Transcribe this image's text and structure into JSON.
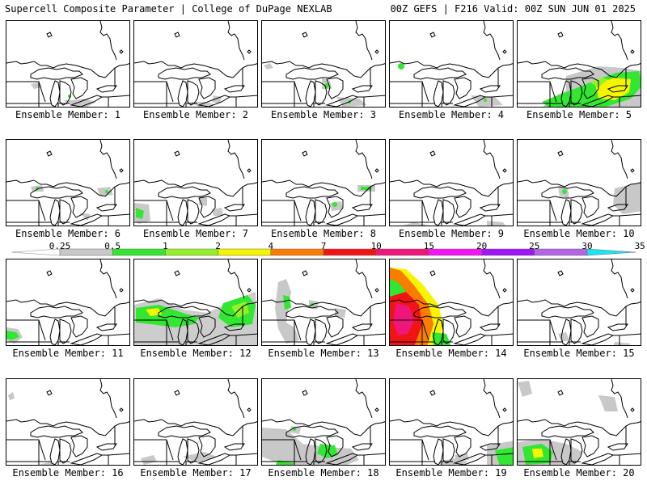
{
  "header": {
    "left": "Supercell Composite Parameter | College of DuPage NEXLAB",
    "right": "00Z GEFS | F216 Valid: 00Z SUN JUN 01 2025"
  },
  "members": [
    {
      "label": "Ensemble Member: 1"
    },
    {
      "label": "Ensemble Member: 2"
    },
    {
      "label": "Ensemble Member: 3"
    },
    {
      "label": "Ensemble Member: 4"
    },
    {
      "label": "Ensemble Member: 5"
    },
    {
      "label": "Ensemble Member: 6"
    },
    {
      "label": "Ensemble Member: 7"
    },
    {
      "label": "Ensemble Member: 8"
    },
    {
      "label": "Ensemble Member: 9"
    },
    {
      "label": "Ensemble Member: 10"
    },
    {
      "label": "Ensemble Member: 11"
    },
    {
      "label": "Ensemble Member: 12"
    },
    {
      "label": "Ensemble Member: 13"
    },
    {
      "label": "Ensemble Member: 14"
    },
    {
      "label": "Ensemble Member: 15"
    },
    {
      "label": "Ensemble Member: 16"
    },
    {
      "label": "Ensemble Member: 17"
    },
    {
      "label": "Ensemble Member: 18"
    },
    {
      "label": "Ensemble Member: 19"
    },
    {
      "label": "Ensemble Member: 20"
    }
  ],
  "colorbar": {
    "labels": [
      "0.25",
      "0.5",
      "1",
      "2",
      "4",
      "7",
      "10",
      "15",
      "20",
      "25",
      "30",
      "35"
    ],
    "colors": [
      "#c8c8c8",
      "#32e632",
      "#96f028",
      "#f5f500",
      "#fa7d00",
      "#f01414",
      "#f0147d",
      "#f514f5",
      "#a014f5",
      "#b464e6",
      "#19e6f0"
    ]
  }
}
